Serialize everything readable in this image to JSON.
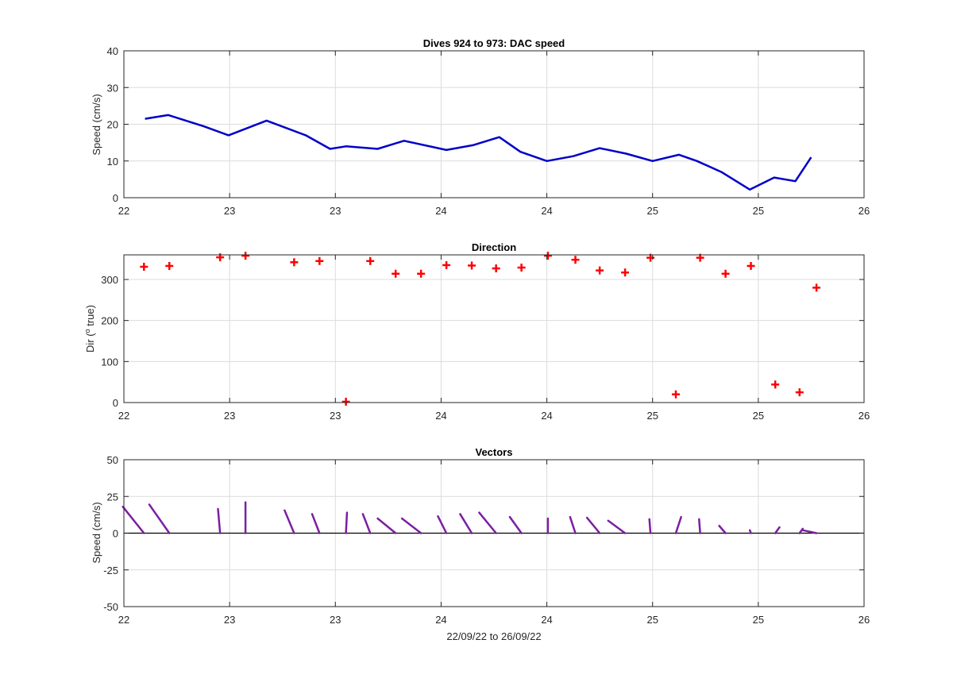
{
  "chart_data": [
    {
      "type": "line",
      "title": "Dives 924 to 973: DAC speed",
      "xlabel": "",
      "ylabel": "Speed (cm/s)",
      "xlim": [
        0,
        7
      ],
      "ylim": [
        0,
        40
      ],
      "x_tick_labels": [
        "22",
        "23",
        "23",
        "24",
        "24",
        "25",
        "25",
        "26"
      ],
      "y_tick_labels": [
        "0",
        "10",
        "20",
        "30",
        "40"
      ],
      "grid": true,
      "color": "#0000C8",
      "series": [
        {
          "x": [
            0.2,
            0.42,
            0.75,
            0.99,
            1.35,
            1.72,
            1.95,
            2.1,
            2.4,
            2.65,
            3.05,
            3.3,
            3.55,
            3.75,
            4.0,
            4.25,
            4.5,
            4.75,
            5.0,
            5.25,
            5.42,
            5.65,
            5.92,
            6.15,
            6.35,
            6.5
          ],
          "y": [
            21.5,
            22.5,
            19.5,
            17,
            21,
            17,
            13.3,
            14,
            13.3,
            15.5,
            13,
            14.3,
            16.5,
            12.5,
            10,
            11.3,
            13.5,
            12,
            10,
            11.7,
            10,
            7,
            2.2,
            5.5,
            4.5,
            11
          ]
        }
      ]
    },
    {
      "type": "scatter",
      "title": "Direction",
      "xlabel": "",
      "ylabel": "Dir (o true)",
      "ylabel_main": "Dir (",
      "ylabel_sup": "o",
      "ylabel_rest": " true)",
      "xlim": [
        0,
        7
      ],
      "ylim": [
        0,
        360
      ],
      "x_tick_labels": [
        "22",
        "23",
        "23",
        "24",
        "24",
        "25",
        "25",
        "26"
      ],
      "y_tick_labels": [
        "0",
        "100",
        "200",
        "300"
      ],
      "grid": true,
      "color": "#FF0000",
      "marker": "+",
      "series": [
        {
          "x": [
            0.19,
            0.43,
            0.91,
            1.15,
            1.61,
            1.85,
            2.1,
            2.33,
            2.57,
            2.81,
            3.05,
            3.29,
            3.52,
            3.76,
            4.01,
            4.27,
            4.5,
            4.74,
            4.98,
            5.22,
            5.45,
            5.69,
            5.93,
            6.16,
            6.39,
            6.55
          ],
          "y": [
            331,
            333,
            354,
            358,
            342,
            345,
            2,
            345,
            314,
            314,
            335,
            334,
            327,
            329,
            358,
            348,
            322,
            317,
            353,
            20,
            353,
            314,
            333,
            44,
            25,
            280
          ]
        }
      ]
    },
    {
      "type": "vector",
      "title": "Vectors",
      "xlabel": "22/09/22 to 26/09/22",
      "ylabel": "Speed (cm/s)",
      "xlim": [
        0,
        7
      ],
      "ylim": [
        -50,
        50
      ],
      "x_tick_labels": [
        "22",
        "23",
        "23",
        "24",
        "24",
        "25",
        "25",
        "26"
      ],
      "y_tick_labels": [
        "-50",
        "-25",
        "0",
        "25",
        "50"
      ],
      "grid": true,
      "color": "#7B1FA2",
      "series": [
        {
          "x": [
            0.19,
            0.43,
            0.91,
            1.15,
            1.61,
            1.85,
            2.1,
            2.33,
            2.57,
            2.81,
            3.05,
            3.29,
            3.52,
            3.76,
            4.01,
            4.27,
            4.5,
            4.74,
            4.98,
            5.22,
            5.45,
            5.69,
            5.93,
            6.16,
            6.39,
            6.55
          ],
          "u": [
            -0.2,
            -0.19,
            -0.02,
            0.0,
            -0.09,
            -0.07,
            0.01,
            -0.07,
            -0.17,
            -0.18,
            -0.08,
            -0.11,
            -0.16,
            -0.11,
            0.0,
            -0.05,
            -0.12,
            -0.16,
            -0.01,
            0.05,
            -0.01,
            -0.06,
            -0.01,
            0.04,
            0.03,
            -0.13
          ],
          "v": [
            18,
            19.5,
            16.5,
            21,
            15.5,
            13,
            14,
            13,
            10,
            10,
            11.5,
            13,
            14,
            11,
            10,
            11,
            10.5,
            8.5,
            9.5,
            11,
            9.5,
            5,
            2,
            4,
            3,
            2
          ]
        }
      ]
    }
  ]
}
